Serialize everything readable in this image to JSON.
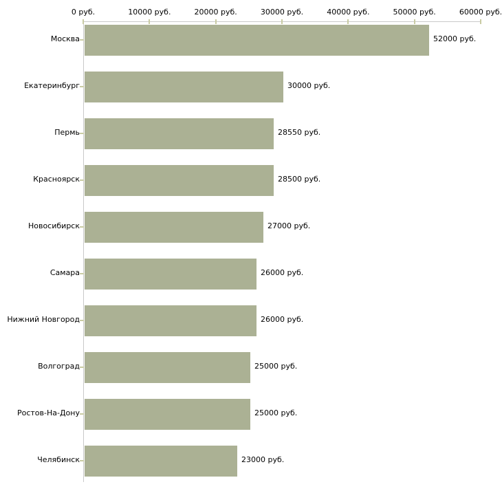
{
  "chart_data": {
    "type": "bar",
    "orientation": "horizontal",
    "title": "",
    "categories": [
      "Москва",
      "Екатеринбург",
      "Пермь",
      "Красноярск",
      "Новосибирск",
      "Самара",
      "Нижний Новгород",
      "Волгоград",
      "Ростов-На-Дону",
      "Челябинск"
    ],
    "values": [
      52000,
      30000,
      28550,
      28500,
      27000,
      26000,
      26000,
      25000,
      25000,
      23000
    ],
    "value_labels": [
      "52000 руб.",
      "30000 руб.",
      "28550 руб.",
      "28500 руб.",
      "27000 руб.",
      "26000 руб.",
      "26000 руб.",
      "25000 руб.",
      "25000 руб.",
      "23000 руб."
    ],
    "x_axis": {
      "position": "top",
      "min": 0,
      "max": 60000,
      "tick_values": [
        0,
        10000,
        20000,
        30000,
        40000,
        50000,
        60000
      ],
      "tick_labels": [
        "0 руб.",
        "10000 руб.",
        "20000 руб.",
        "30000 руб.",
        "40000 руб.",
        "50000 руб.",
        "60000 руб."
      ]
    },
    "grid": false,
    "legend": false,
    "colors": {
      "bar_fill": "#abb194",
      "axis_line": "#c9c9c9",
      "tick_mark": "#c9cba3",
      "text": "#000000",
      "background": "#ffffff"
    }
  }
}
